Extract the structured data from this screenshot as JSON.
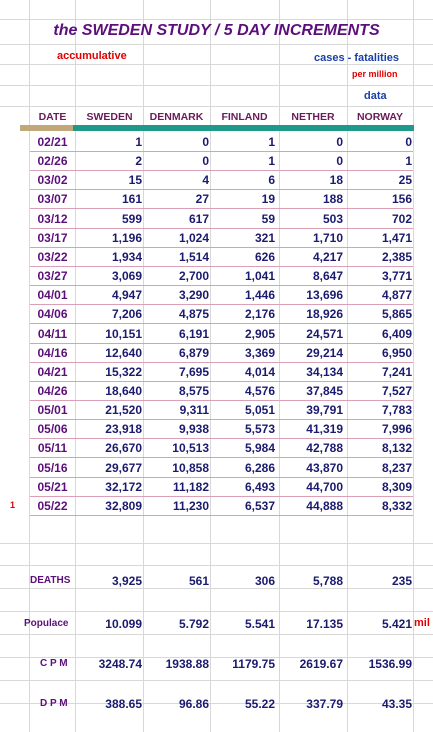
{
  "title": "the SWEDEN STUDY / 5 DAY INCREMENTS",
  "subtitle_left": "accumulative",
  "subtitle_right": "cases - fatalities",
  "per_million": "per million",
  "data_label": "data",
  "headers": [
    "DATE",
    "SWEDEN",
    "DENMARK",
    "FINLAND",
    "NETHER",
    "NORWAY"
  ],
  "rows": [
    {
      "date": "02/21",
      "v": [
        "1",
        "0",
        "1",
        "0",
        "0"
      ]
    },
    {
      "date": "02/26",
      "v": [
        "2",
        "0",
        "1",
        "0",
        "1"
      ]
    },
    {
      "date": "03/02",
      "v": [
        "15",
        "4",
        "6",
        "18",
        "25"
      ]
    },
    {
      "date": "03/07",
      "v": [
        "161",
        "27",
        "19",
        "188",
        "156"
      ]
    },
    {
      "date": "03/12",
      "v": [
        "599",
        "617",
        "59",
        "503",
        "702"
      ]
    },
    {
      "date": "03/17",
      "v": [
        "1,196",
        "1,024",
        "321",
        "1,710",
        "1,471"
      ]
    },
    {
      "date": "03/22",
      "v": [
        "1,934",
        "1,514",
        "626",
        "4,217",
        "2,385"
      ]
    },
    {
      "date": "03/27",
      "v": [
        "3,069",
        "2,700",
        "1,041",
        "8,647",
        "3,771"
      ]
    },
    {
      "date": "04/01",
      "v": [
        "4,947",
        "3,290",
        "1,446",
        "13,696",
        "4,877"
      ]
    },
    {
      "date": "04/06",
      "v": [
        "7,206",
        "4,875",
        "2,176",
        "18,926",
        "5,865"
      ]
    },
    {
      "date": "04/11",
      "v": [
        "10,151",
        "6,191",
        "2,905",
        "24,571",
        "6,409"
      ]
    },
    {
      "date": "04/16",
      "v": [
        "12,640",
        "6,879",
        "3,369",
        "29,214",
        "6,950"
      ]
    },
    {
      "date": "04/21",
      "v": [
        "15,322",
        "7,695",
        "4,014",
        "34,134",
        "7,241"
      ]
    },
    {
      "date": "04/26",
      "v": [
        "18,640",
        "8,575",
        "4,576",
        "37,845",
        "7,527"
      ]
    },
    {
      "date": "05/01",
      "v": [
        "21,520",
        "9,311",
        "5,051",
        "39,791",
        "7,783"
      ]
    },
    {
      "date": "05/06",
      "v": [
        "23,918",
        "9,938",
        "5,573",
        "41,319",
        "7,996"
      ]
    },
    {
      "date": "05/11",
      "v": [
        "26,670",
        "10,513",
        "5,984",
        "42,788",
        "8,132"
      ]
    },
    {
      "date": "05/16",
      "v": [
        "29,677",
        "10,858",
        "6,286",
        "43,870",
        "8,237"
      ]
    },
    {
      "date": "05/21",
      "v": [
        "32,172",
        "11,182",
        "6,493",
        "44,700",
        "8,309"
      ]
    },
    {
      "date": "05/22",
      "v": [
        "32,809",
        "11,230",
        "6,537",
        "44,888",
        "8,332"
      ]
    }
  ],
  "row_marker": "1",
  "deaths": {
    "label": "DEATHS",
    "v": [
      "3,925",
      "561",
      "306",
      "5,788",
      "235"
    ]
  },
  "populace": {
    "label": "Populace",
    "v": [
      "10.099",
      "5.792",
      "5.541",
      "17.135",
      "5.421"
    ],
    "unit": "mil"
  },
  "cpm": {
    "label": "C P M",
    "v": [
      "3248.74",
      "1938.88",
      "1179.75",
      "2619.67",
      "1536.99"
    ]
  },
  "dpm": {
    "label": "D P M",
    "v": [
      "388.65",
      "96.86",
      "55.22",
      "337.79",
      "43.35"
    ]
  },
  "colors": {
    "title": "#5c0f7a",
    "accent_band": "#1f9a8a",
    "date_band": "#c0a878",
    "red": "#e00000",
    "blue": "#1a3fa6"
  }
}
